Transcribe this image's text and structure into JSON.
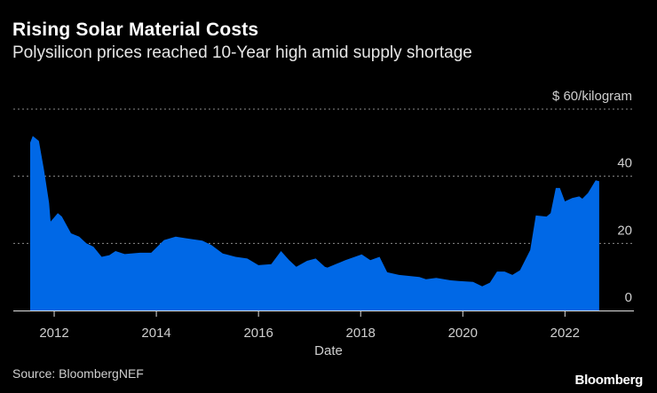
{
  "title": "Rising Solar Material Costs",
  "subtitle": "Polysilicon prices reached 10-Year high amid supply shortage",
  "source": "Source: BloombergNEF",
  "logo": "Bloomberg",
  "chart_data": {
    "type": "area",
    "title": "Rising Solar Material Costs",
    "subtitle": "Polysilicon prices reached 10-Year high amid supply shortage",
    "xlabel": "Date",
    "ylabel": "",
    "y_unit_label": "$ 60/kilogram",
    "xlim": [
      2011.2,
      2023.35
    ],
    "ylim": [
      0,
      60
    ],
    "x_ticks": [
      2012,
      2014,
      2016,
      2018,
      2020,
      2022
    ],
    "x_tick_labels": [
      "2012",
      "2014",
      "2016",
      "2018",
      "2020",
      "2022"
    ],
    "y_ticks": [
      0,
      20,
      40,
      60
    ],
    "y_tick_labels": [
      "0",
      "20",
      "40",
      "$ 60/kilogram"
    ],
    "grid": true,
    "color": "#0068e6",
    "series": [
      {
        "x": [
          2011.53,
          2011.58,
          2011.7,
          2011.8,
          2011.9,
          2011.93,
          2012.07,
          2012.15,
          2012.33,
          2012.49,
          2012.63,
          2012.77,
          2012.93,
          2013.08,
          2013.2,
          2013.38,
          2013.68,
          2013.9,
          2014.15,
          2014.38,
          2014.6,
          2014.9,
          2015.08,
          2015.3,
          2015.55,
          2015.78,
          2016.0,
          2016.25,
          2016.44,
          2016.6,
          2016.74,
          2016.95,
          2017.12,
          2017.3,
          2017.35,
          2017.7,
          2018.02,
          2018.19,
          2018.37,
          2018.52,
          2018.75,
          2019.15,
          2019.28,
          2019.48,
          2019.75,
          2019.92,
          2020.2,
          2020.38,
          2020.53,
          2020.67,
          2020.82,
          2020.97,
          2021.12,
          2021.32,
          2021.43,
          2021.64,
          2021.72,
          2021.82,
          2021.9,
          2022.0,
          2022.14,
          2022.28,
          2022.34,
          2022.45,
          2022.6,
          2022.67
        ],
        "values": [
          50,
          52,
          50.5,
          42,
          32,
          26.5,
          29,
          28,
          23,
          22,
          20,
          19,
          16,
          16.5,
          17.7,
          16.8,
          17.2,
          17.2,
          21,
          22,
          21.5,
          20.8,
          19.5,
          17,
          16,
          15.5,
          13.5,
          13.8,
          17.7,
          15,
          13,
          14.8,
          15.5,
          13,
          12.8,
          15,
          16.7,
          15,
          16,
          11.4,
          10.6,
          10,
          9.3,
          9.7,
          9,
          8.8,
          8.5,
          7.2,
          8.3,
          11.6,
          11.6,
          10.6,
          12,
          18,
          28.3,
          28,
          29,
          36.5,
          36.5,
          32.5,
          33.5,
          34,
          33.3,
          35,
          38.8,
          38.5
        ]
      }
    ]
  }
}
